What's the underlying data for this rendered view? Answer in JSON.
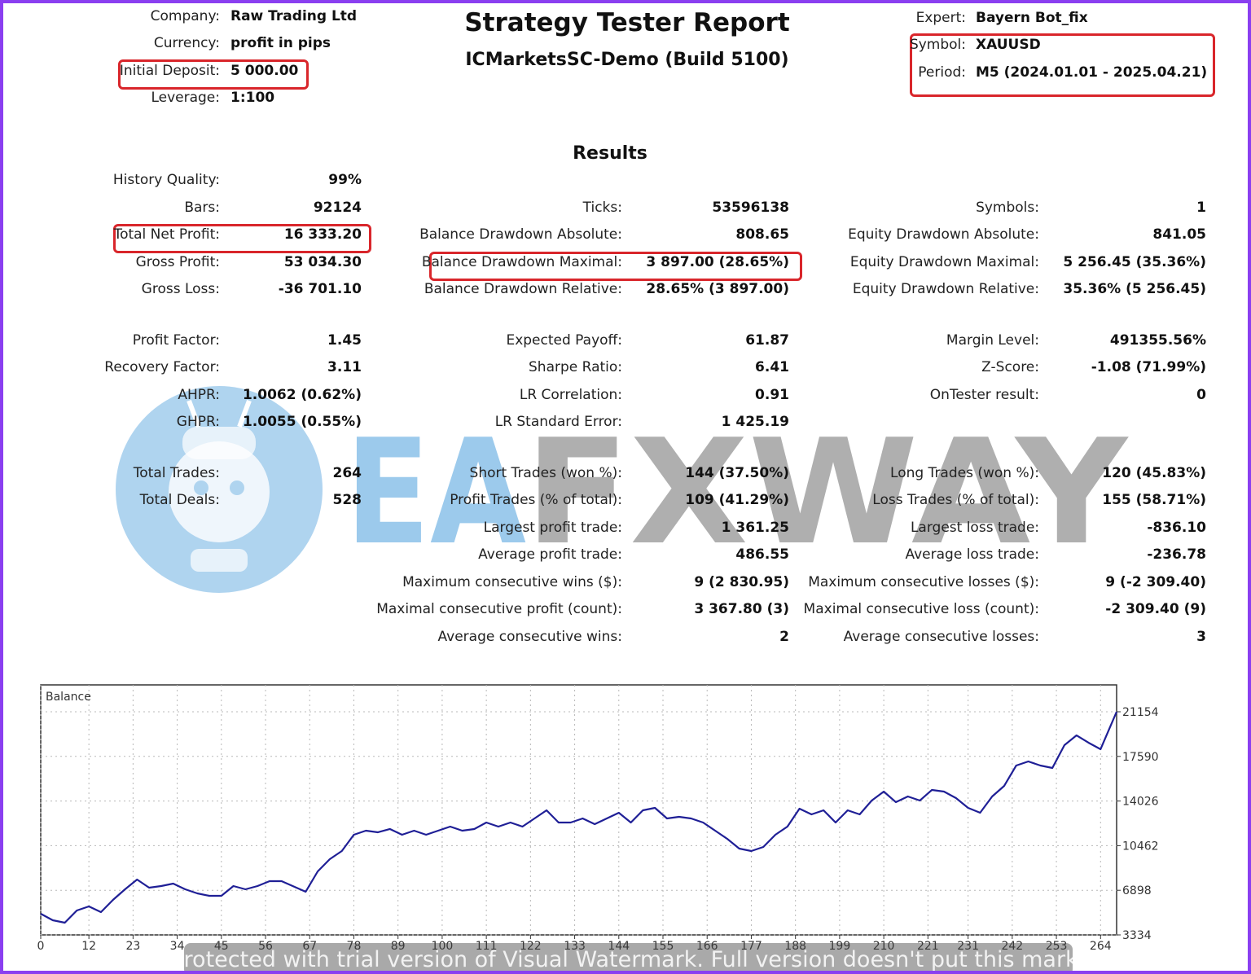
{
  "header": {
    "title": "Strategy Tester Report",
    "subtitle": "ICMarketsSC-Demo (Build 5100)",
    "left": [
      {
        "label": "Company:",
        "value": "Raw Trading Ltd"
      },
      {
        "label": "Currency:",
        "value": "profit in pips"
      },
      {
        "label": "Initial Deposit:",
        "value": "5 000.00"
      },
      {
        "label": "Leverage:",
        "value": "1:100"
      }
    ],
    "right": [
      {
        "label": "Expert:",
        "value": "Bayern Bot_fix"
      },
      {
        "label": "Symbol:",
        "value": "XAUUSD"
      },
      {
        "label": "Period:",
        "value": "M5 (2024.01.01 - 2025.04.21)"
      }
    ]
  },
  "results": {
    "title": "Results",
    "groups": [
      [
        {
          "left": {
            "label": "History Quality:",
            "value": "99%"
          }
        },
        {
          "left": {
            "label": "Bars:",
            "value": "92124"
          },
          "middle": {
            "label": "Ticks:",
            "value": "53596138"
          },
          "right": {
            "label": "Symbols:",
            "value": "1"
          }
        },
        {
          "left": {
            "label": "Total Net Profit:",
            "value": "16 333.20"
          },
          "middle": {
            "label": "Balance Drawdown Absolute:",
            "value": "808.65"
          },
          "right": {
            "label": "Equity Drawdown Absolute:",
            "value": "841.05"
          }
        },
        {
          "left": {
            "label": "Gross Profit:",
            "value": "53 034.30"
          },
          "middle": {
            "label": "Balance Drawdown Maximal:",
            "value": "3 897.00 (28.65%)"
          },
          "right": {
            "label": "Equity Drawdown Maximal:",
            "value": "5 256.45 (35.36%)"
          }
        },
        {
          "left": {
            "label": "Gross Loss:",
            "value": "-36 701.10"
          },
          "middle": {
            "label": "Balance Drawdown Relative:",
            "value": "28.65% (3 897.00)"
          },
          "right": {
            "label": "Equity Drawdown Relative:",
            "value": "35.36% (5 256.45)"
          }
        }
      ],
      [
        {
          "left": {
            "label": "Profit Factor:",
            "value": "1.45"
          },
          "middle": {
            "label": "Expected Payoff:",
            "value": "61.87"
          },
          "right": {
            "label": "Margin Level:",
            "value": "491355.56%"
          }
        },
        {
          "left": {
            "label": "Recovery Factor:",
            "value": "3.11"
          },
          "middle": {
            "label": "Sharpe Ratio:",
            "value": "6.41"
          },
          "right": {
            "label": "Z-Score:",
            "value": "-1.08 (71.99%)"
          }
        },
        {
          "left": {
            "label": "AHPR:",
            "value": "1.0062 (0.62%)"
          },
          "middle": {
            "label": "LR Correlation:",
            "value": "0.91"
          },
          "right": {
            "label": "OnTester result:",
            "value": "0"
          }
        },
        {
          "left": {
            "label": "GHPR:",
            "value": "1.0055 (0.55%)"
          },
          "middle": {
            "label": "LR Standard Error:",
            "value": "1 425.19"
          }
        }
      ],
      [
        {
          "left": {
            "label": "Total Trades:",
            "value": "264"
          },
          "middle": {
            "label": "Short Trades (won %):",
            "value": "144 (37.50%)"
          },
          "right": {
            "label": "Long Trades (won %):",
            "value": "120 (45.83%)"
          }
        },
        {
          "left": {
            "label": "Total Deals:",
            "value": "528"
          },
          "middle": {
            "label": "Profit Trades (% of total):",
            "value": "109 (41.29%)"
          },
          "right": {
            "label": "Loss Trades (% of total):",
            "value": "155 (58.71%)"
          }
        },
        {
          "middle": {
            "label": "Largest profit trade:",
            "value": "1 361.25"
          },
          "right": {
            "label": "Largest loss trade:",
            "value": "-836.10"
          }
        },
        {
          "middle": {
            "label": "Average profit trade:",
            "value": "486.55"
          },
          "right": {
            "label": "Average loss trade:",
            "value": "-236.78"
          }
        },
        {
          "middle": {
            "label": "Maximum consecutive wins ($):",
            "value": "9 (2 830.95)"
          },
          "right": {
            "label": "Maximum consecutive losses ($):",
            "value": "9 (-2 309.40)"
          }
        },
        {
          "middle": {
            "label": "Maximal consecutive profit (count):",
            "value": "3 367.80 (3)"
          },
          "right": {
            "label": "Maximal consecutive loss (count):",
            "value": "-2 309.40 (9)"
          }
        },
        {
          "middle": {
            "label": "Average consecutive wins:",
            "value": "2"
          },
          "right": {
            "label": "Average consecutive losses:",
            "value": "3"
          }
        }
      ]
    ]
  },
  "chart_data": {
    "type": "line",
    "grid": true,
    "x": [
      0,
      3,
      6,
      9,
      12,
      15,
      18,
      21,
      24,
      27,
      30,
      33,
      36,
      39,
      42,
      45,
      48,
      51,
      54,
      57,
      60,
      66,
      69,
      72,
      75,
      78,
      81,
      84,
      87,
      90,
      93,
      96,
      99,
      102,
      105,
      108,
      111,
      114,
      117,
      120,
      123,
      126,
      129,
      132,
      135,
      138,
      141,
      144,
      147,
      150,
      153,
      156,
      159,
      162,
      165,
      168,
      171,
      174,
      177,
      180,
      183,
      186,
      189,
      192,
      195,
      198,
      201,
      204,
      207,
      210,
      213,
      216,
      219,
      222,
      225,
      228,
      231,
      234,
      237,
      240,
      243,
      246,
      249,
      252,
      255,
      258,
      261,
      264,
      268
    ],
    "series": [
      {
        "name": "Balance",
        "color": "#1f1f96",
        "values": [
          5025,
          4505,
          4310,
          5285,
          5610,
          5155,
          6130,
          6976,
          7757,
          7106,
          7236,
          7432,
          6976,
          6651,
          6456,
          6456,
          7236,
          6976,
          7236,
          7627,
          7627,
          6781,
          8407,
          9383,
          10033,
          11334,
          11659,
          11529,
          11789,
          11334,
          11659,
          11334,
          11659,
          11984,
          11659,
          11789,
          12310,
          11984,
          12310,
          11984,
          12635,
          13285,
          12310,
          12310,
          12635,
          12179,
          12635,
          13090,
          12310,
          13285,
          13480,
          12635,
          12765,
          12635,
          12310,
          11659,
          11009,
          10228,
          10033,
          10358,
          11334,
          11984,
          13415,
          12960,
          13285,
          12310,
          13285,
          12960,
          14066,
          14781,
          13936,
          14391,
          14066,
          14911,
          14781,
          14261,
          13480,
          13090,
          14391,
          15236,
          16862,
          17188,
          16862,
          16667,
          18488,
          19269,
          18683,
          18163,
          21154
        ]
      }
    ],
    "xlim": [
      0,
      268
    ],
    "ylim": [
      3334,
      23300
    ],
    "xticks": [
      0,
      12,
      23,
      34,
      45,
      56,
      67,
      78,
      89,
      100,
      111,
      122,
      133,
      144,
      155,
      166,
      177,
      188,
      199,
      210,
      221,
      231,
      242,
      253,
      264
    ],
    "yticks": [
      3334,
      6898,
      10462,
      14026,
      17590,
      21154
    ]
  },
  "watermark": {
    "brand_first": "EA",
    "brand_second": "FXWAY",
    "notice": "Protected with trial version of Visual Watermark. Full version doesn't put this mark."
  }
}
